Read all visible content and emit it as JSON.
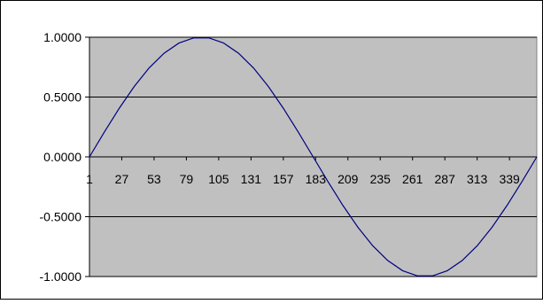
{
  "chart_data": {
    "type": "line",
    "title": "",
    "xlabel": "",
    "ylabel": "",
    "x_range": [
      1,
      361
    ],
    "ylim": [
      -1.0,
      1.0
    ],
    "x_tick_labels": [
      "1",
      "27",
      "53",
      "79",
      "105",
      "131",
      "157",
      "183",
      "209",
      "235",
      "261",
      "287",
      "313",
      "339"
    ],
    "y_tick_labels": [
      "1.0000",
      "0.5000",
      "0.0000",
      "-0.5000",
      "-1.0000"
    ],
    "y_tick_values": [
      1.0,
      0.5,
      0.0,
      -0.5,
      -1.0
    ],
    "grid": true,
    "legend": "none",
    "plot_background": "#c0c0c0",
    "series_color": "#000080",
    "series": [
      {
        "x": [
          1,
          13,
          25,
          37,
          49,
          61,
          73,
          85,
          97,
          109,
          121,
          133,
          145,
          157,
          169,
          181,
          193,
          205,
          217,
          229,
          241,
          253,
          265,
          277,
          289,
          301,
          313,
          325,
          337,
          349,
          361
        ],
        "values": [
          0.0,
          0.2079,
          0.4067,
          0.5878,
          0.7431,
          0.866,
          0.9511,
          0.9945,
          0.9945,
          0.9511,
          0.866,
          0.7431,
          0.5878,
          0.4067,
          0.2079,
          0.0,
          -0.2079,
          -0.4067,
          -0.5878,
          -0.7431,
          -0.866,
          -0.9511,
          -0.9945,
          -0.9945,
          -0.9511,
          -0.866,
          -0.7431,
          -0.5878,
          -0.4067,
          -0.2079,
          0.0
        ]
      }
    ]
  }
}
